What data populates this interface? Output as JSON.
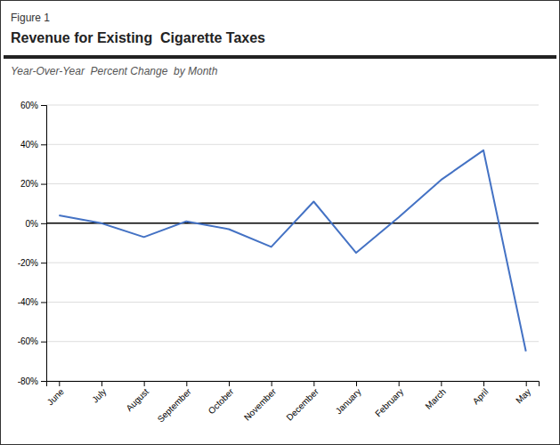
{
  "chart_data": {
    "type": "line",
    "title": "Revenue for Existing  Cigarette Taxes",
    "subtitle": "Year-Over-Year  Percent Change  by Month",
    "annotations": [
      "Figure 1"
    ],
    "categories": [
      "June",
      "July",
      "August",
      "September",
      "October",
      "November",
      "December",
      "January",
      "February",
      "March",
      "April",
      "May"
    ],
    "values": [
      4,
      0,
      -7,
      1,
      -3,
      -12,
      11,
      -15,
      3,
      22,
      37,
      -65
    ],
    "color": "#4472C4",
    "ylim": [
      -80,
      60
    ],
    "yticks": [
      {
        "value": -80,
        "label": "-80%"
      },
      {
        "value": -60,
        "label": "-60%"
      },
      {
        "value": -40,
        "label": "-40%"
      },
      {
        "value": -20,
        "label": "-20%"
      },
      {
        "value": 0,
        "label": "0%"
      },
      {
        "value": 20,
        "label": "20%"
      },
      {
        "value": 40,
        "label": "40%"
      },
      {
        "value": 60,
        "label": "60%"
      }
    ],
    "grid": true
  }
}
